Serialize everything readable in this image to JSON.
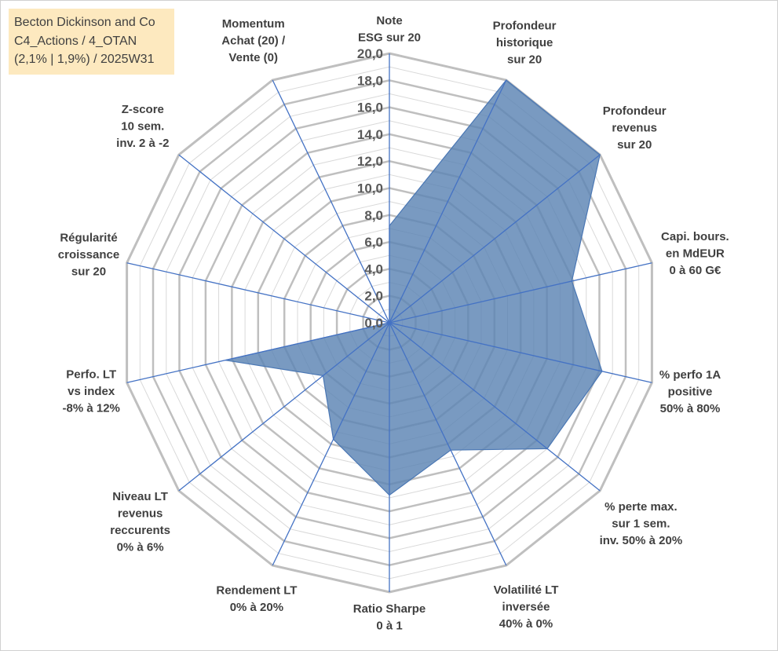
{
  "info": {
    "line1": "Becton Dickinson and Co",
    "line2": "C4_Actions / 4_OTAN",
    "line3": "(2,1% | 1,9%) / 2025W31"
  },
  "colors": {
    "fill": "#5b84b3",
    "stroke": "#4a77b4",
    "spoke": "#4472c4",
    "grid_major": "#bfbfbf",
    "grid_minor": "#d9d9d9",
    "info_bg": "#fde9bf"
  },
  "chart_data": {
    "type": "radar",
    "rlim": [
      0,
      20
    ],
    "major_step": 2,
    "grid": true,
    "tick_labels": [
      "0,0",
      "2,0",
      "4,0",
      "6,0",
      "8,0",
      "10,0",
      "12,0",
      "14,0",
      "16,0",
      "18,0",
      "20,0"
    ],
    "axes": [
      {
        "label": [
          "Note",
          "ESG sur 20"
        ],
        "value": 7.2
      },
      {
        "label": [
          "Profondeur",
          "historique",
          "sur 20"
        ],
        "value": 20.0
      },
      {
        "label": [
          "Profondeur",
          "revenus",
          "sur 20"
        ],
        "value": 20.0
      },
      {
        "label": [
          "Capi. bours.",
          "en MdEUR",
          "0 à 60 G€"
        ],
        "value": 13.9
      },
      {
        "label": [
          "% perfo 1A",
          "positive",
          "50% à 80%"
        ],
        "value": 16.2
      },
      {
        "label": [
          "% perte max.",
          "sur 1 sem.",
          "inv. 50% à 20%"
        ],
        "value": 15.0
      },
      {
        "label": [
          "Volatilité LT",
          "inversée",
          "40% à 0%"
        ],
        "value": 10.5
      },
      {
        "label": [
          "Ratio Sharpe",
          "0 à 1"
        ],
        "value": 12.8
      },
      {
        "label": [
          "Rendement LT",
          "0% à 20%"
        ],
        "value": 9.6
      },
      {
        "label": [
          "Niveau LT",
          "revenus",
          "reccurents",
          "0% à 6%"
        ],
        "value": 6.3
      },
      {
        "label": [
          "Perfo. LT",
          "vs index",
          "-8% à 12%"
        ],
        "value": 12.5
      },
      {
        "label": [
          "Régularité",
          "croissance",
          "sur 20"
        ],
        "value": 0.0
      },
      {
        "label": [
          "Z-score",
          "10 sem.",
          "inv. 2 à -2"
        ],
        "value": 0.0
      },
      {
        "label": [
          "Momentum",
          "Achat (20) /",
          "Vente (0)"
        ],
        "value": 0.0
      }
    ]
  }
}
